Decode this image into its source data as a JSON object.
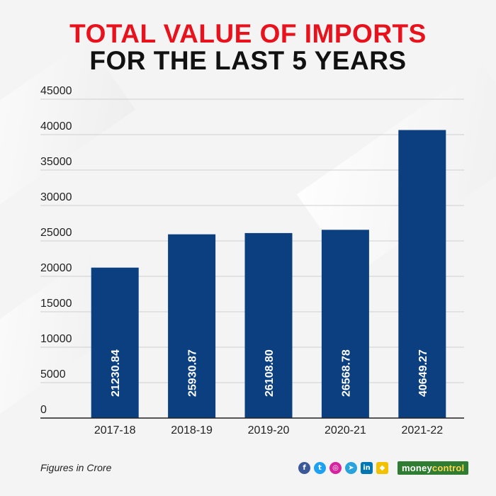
{
  "header": {
    "title_line1": "TOTAL VALUE OF IMPORTS",
    "title_line2": "FOR THE LAST 5 YEARS"
  },
  "chart_data": {
    "type": "bar",
    "categories": [
      "2017-18",
      "2018-19",
      "2019-20",
      "2020-21",
      "2021-22"
    ],
    "values": [
      21230.84,
      25930.87,
      26108.8,
      26568.78,
      40649.27
    ],
    "value_labels": [
      "21230.84",
      "25930.87",
      "26108.80",
      "26568.78",
      "40649.27"
    ],
    "yticks": [
      0,
      5000,
      10000,
      15000,
      20000,
      25000,
      30000,
      35000,
      40000,
      45000
    ],
    "ylim": [
      0,
      45000
    ],
    "grid": true,
    "xlabel": "",
    "ylabel": ""
  },
  "footer": {
    "note": "Figures in Crore",
    "brand_part1": "money",
    "brand_part2": "control",
    "socials": [
      {
        "name": "facebook-icon",
        "glyph": "f",
        "color": "#3b5998"
      },
      {
        "name": "twitter-icon",
        "glyph": "t",
        "color": "#1da1f2"
      },
      {
        "name": "instagram-icon",
        "glyph": "◎",
        "color": "#d6249f"
      },
      {
        "name": "telegram-icon",
        "glyph": "➤",
        "color": "#2aa3dc"
      },
      {
        "name": "linkedin-icon",
        "glyph": "in",
        "color": "#0077b5"
      },
      {
        "name": "snapchat-icon",
        "glyph": "◆",
        "color": "#f2c200"
      }
    ]
  },
  "colors": {
    "bar": "#0b3f80",
    "title_accent": "#e8121d",
    "title_main": "#111111",
    "grid": "#cfcfcf",
    "axis": "#222222"
  }
}
